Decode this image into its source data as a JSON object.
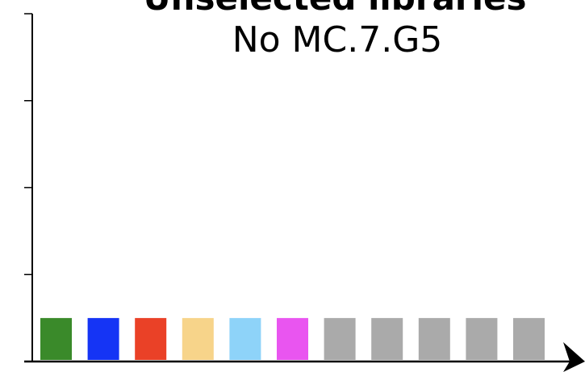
{
  "chart_data": {
    "type": "bar",
    "title": "Unselected libraries",
    "subtitle": "No MC.7.G5",
    "categories": [
      null,
      null,
      null,
      null,
      null,
      null,
      null,
      null,
      null,
      null,
      null
    ],
    "values": [
      0.5,
      0.5,
      0.5,
      0.5,
      0.5,
      0.5,
      0.5,
      0.5,
      0.5,
      0.5,
      0.5
    ],
    "colors": [
      "#3a8a2a",
      "#1534f5",
      "#ea4127",
      "#f7d48a",
      "#8ed3f9",
      "#e955f0",
      "#aaaaaa",
      "#aaaaaa",
      "#aaaaaa",
      "#aaaaaa",
      "#aaaaaa"
    ],
    "ylim": [
      0,
      4
    ],
    "yticks": [
      0,
      1,
      2,
      3,
      4
    ],
    "grid": false
  }
}
